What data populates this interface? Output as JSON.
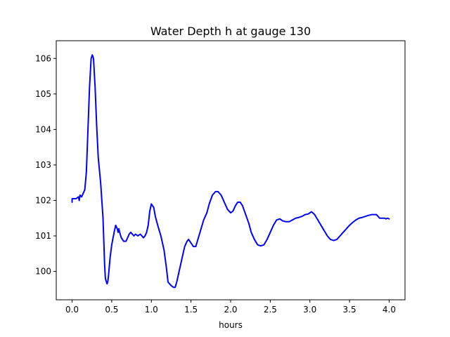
{
  "chart_data": {
    "type": "line",
    "title": "Water Depth h at gauge 130",
    "xlabel": "hours",
    "ylabel": "",
    "xlim": [
      -0.2,
      4.2
    ],
    "ylim": [
      99.2,
      106.5
    ],
    "xticks": [
      0.0,
      0.5,
      1.0,
      1.5,
      2.0,
      2.5,
      3.0,
      3.5,
      4.0
    ],
    "xtick_labels": [
      "0.0",
      "0.5",
      "1.0",
      "1.5",
      "2.0",
      "2.5",
      "3.0",
      "3.5",
      "4.0"
    ],
    "yticks": [
      100,
      101,
      102,
      103,
      104,
      105,
      106
    ],
    "ytick_labels": [
      "100",
      "101",
      "102",
      "103",
      "104",
      "105",
      "106"
    ],
    "grid": false,
    "series": [
      {
        "color": "#0000ff",
        "x": [
          0.0,
          0.0,
          0.05,
          0.08,
          0.09,
          0.1,
          0.12,
          0.16,
          0.18,
          0.2,
          0.22,
          0.24,
          0.255,
          0.27,
          0.29,
          0.31,
          0.33,
          0.36,
          0.39,
          0.41,
          0.42,
          0.44,
          0.45,
          0.46,
          0.47,
          0.48,
          0.5,
          0.53,
          0.55,
          0.57,
          0.58,
          0.59,
          0.6,
          0.62,
          0.65,
          0.68,
          0.72,
          0.74,
          0.76,
          0.78,
          0.8,
          0.83,
          0.86,
          0.88,
          0.9,
          0.92,
          0.94,
          0.96,
          0.98,
          1.0,
          1.03,
          1.05,
          1.08,
          1.12,
          1.16,
          1.19,
          1.21,
          1.25,
          1.28,
          1.3,
          1.32,
          1.34,
          1.38,
          1.42,
          1.45,
          1.47,
          1.5,
          1.53,
          1.56,
          1.58,
          1.62,
          1.66,
          1.7,
          1.73,
          1.77,
          1.81,
          1.84,
          1.86,
          1.88,
          1.9,
          1.93,
          1.96,
          2.0,
          2.03,
          2.06,
          2.09,
          2.12,
          2.15,
          2.19,
          2.23,
          2.26,
          2.3,
          2.34,
          2.38,
          2.42,
          2.46,
          2.5,
          2.54,
          2.58,
          2.62,
          2.66,
          2.7,
          2.74,
          2.78,
          2.82,
          2.86,
          2.9,
          2.94,
          2.98,
          3.02,
          3.06,
          3.1,
          3.14,
          3.18,
          3.22,
          3.26,
          3.3,
          3.34,
          3.38,
          3.42,
          3.46,
          3.5,
          3.54,
          3.58,
          3.62,
          3.66,
          3.7,
          3.74,
          3.78,
          3.82,
          3.84,
          3.86,
          3.88,
          3.9,
          3.92,
          3.94,
          3.96,
          3.98,
          4.0
        ],
        "y": [
          101.95,
          102.05,
          102.05,
          102.1,
          102.0,
          102.15,
          102.1,
          102.3,
          102.8,
          104.0,
          105.2,
          106.0,
          106.1,
          106.0,
          105.2,
          104.1,
          103.2,
          102.5,
          101.5,
          100.2,
          99.8,
          99.65,
          99.7,
          99.9,
          100.15,
          100.4,
          100.75,
          101.1,
          101.3,
          101.2,
          101.1,
          101.2,
          101.1,
          100.95,
          100.85,
          100.85,
          101.05,
          101.1,
          101.05,
          101.0,
          101.05,
          101.0,
          101.05,
          101.0,
          100.95,
          101.0,
          101.1,
          101.3,
          101.7,
          101.9,
          101.8,
          101.55,
          101.3,
          101.0,
          100.6,
          100.1,
          99.7,
          99.6,
          99.55,
          99.55,
          99.7,
          99.9,
          100.3,
          100.7,
          100.85,
          100.9,
          100.8,
          100.7,
          100.7,
          100.85,
          101.15,
          101.45,
          101.65,
          101.9,
          102.15,
          102.25,
          102.25,
          102.2,
          102.15,
          102.05,
          101.9,
          101.75,
          101.65,
          101.7,
          101.85,
          101.95,
          101.95,
          101.85,
          101.6,
          101.35,
          101.1,
          100.9,
          100.75,
          100.72,
          100.75,
          100.9,
          101.1,
          101.3,
          101.45,
          101.48,
          101.42,
          101.4,
          101.4,
          101.45,
          101.5,
          101.52,
          101.55,
          101.6,
          101.62,
          101.68,
          101.6,
          101.45,
          101.3,
          101.15,
          101.0,
          100.9,
          100.87,
          100.9,
          101.0,
          101.1,
          101.2,
          101.3,
          101.38,
          101.45,
          101.5,
          101.52,
          101.55,
          101.58,
          101.6,
          101.6,
          101.6,
          101.55,
          101.5,
          101.5,
          101.5,
          101.5,
          101.48,
          101.5,
          101.48
        ]
      }
    ]
  }
}
